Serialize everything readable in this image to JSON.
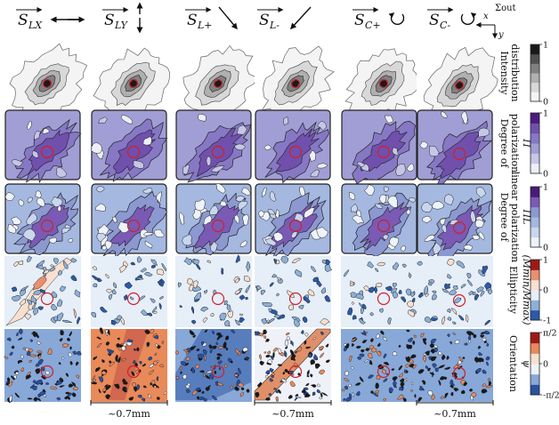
{
  "columns": [
    {
      "id": "lx",
      "main": "S",
      "sub": "LX",
      "arrow": "double-horizontal-arrow-icon"
    },
    {
      "id": "ly",
      "main": "S",
      "sub": "LY",
      "arrow": "double-vertical-arrow-icon"
    },
    {
      "id": "lplus",
      "main": "S",
      "sub": "L+",
      "arrow": "diagonal-down-right-arrow-icon"
    },
    {
      "id": "lminus",
      "main": "S",
      "sub": "L-",
      "arrow": "diagonal-down-left-arrow-icon"
    },
    {
      "id": "cplus",
      "main": "S",
      "sub": "C+",
      "arrow": "clockwise-circular-arrow-icon"
    },
    {
      "id": "cminus",
      "main": "S",
      "sub": "C-",
      "arrow": "counterclockwise-circular-arrow-icon"
    }
  ],
  "axes": {
    "x": "x",
    "y": "y",
    "plane": "Σout"
  },
  "rows": [
    {
      "id": "intensity",
      "label_lines": [
        "Intensity",
        "distribution"
      ],
      "symbol": "",
      "ticks": [
        "1",
        "0"
      ],
      "colors": [
        "#f4f4f4",
        "#d8d8d8",
        "#b0b0b0",
        "#808080",
        "#505050",
        "#1a1a1a"
      ]
    },
    {
      "id": "dop",
      "label_lines": [
        "Degree of",
        "polarization"
      ],
      "symbol": "Π",
      "ticks": [
        "1",
        "0"
      ],
      "colors": [
        "#eeeef8",
        "#c6c6e6",
        "#a09ed4",
        "#8678c4",
        "#7050ac",
        "#4c1a80"
      ]
    },
    {
      "id": "dolp",
      "label_lines": [
        "Degree of",
        "linear polarization"
      ],
      "symbol": "ΠL",
      "ticks": [
        "1",
        "0"
      ],
      "colors": [
        "#eef2fa",
        "#cad6ee",
        "#a4b8e0",
        "#8c98d0",
        "#7a5ab4",
        "#4a1a78"
      ]
    },
    {
      "id": "ellipticity",
      "label_lines": [
        "Ellipticity"
      ],
      "symbol": "(Mmin/Mmax)",
      "ticks": [
        "1",
        "0",
        "-1"
      ],
      "colors": [
        "#2a5aa8",
        "#8cb0d8",
        "#e6eef8",
        "#f8e0d0",
        "#e89070",
        "#a01818"
      ]
    },
    {
      "id": "orientation",
      "label_lines": [
        "Orientation"
      ],
      "symbol": "ψ",
      "ticks": [
        "π/2",
        "0",
        "-π/2"
      ],
      "colors": [
        "#2a50a0",
        "#88a8d8",
        "#eef2f8",
        "#f6e0d0",
        "#e88a5a",
        "#a01818"
      ]
    }
  ],
  "scale_bars": [
    {
      "text": "~0.7mm",
      "col": 1
    },
    {
      "text": "~0.7mm",
      "col": 3
    },
    {
      "text": "~0.7mm",
      "col": 5
    }
  ]
}
